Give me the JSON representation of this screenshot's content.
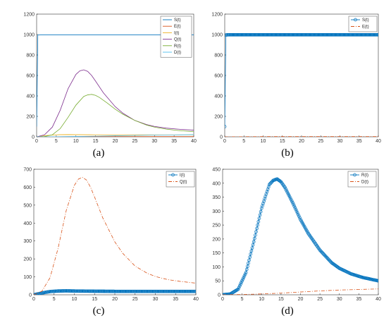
{
  "chart_data": [
    {
      "type": "line",
      "caption": "(a)",
      "xlim": [
        0,
        40
      ],
      "ylim": [
        0,
        1200
      ],
      "xticks": [
        0,
        5,
        10,
        15,
        20,
        25,
        30,
        35,
        40
      ],
      "yticks": [
        0,
        200,
        400,
        600,
        800,
        1000,
        1200
      ],
      "legend_position": "top-right",
      "series": [
        {
          "name": "S(t)",
          "color": "#0072BD",
          "style": "solid",
          "marker": "none",
          "x": [
            0,
            0.3,
            1,
            2,
            5,
            10,
            20,
            30,
            40
          ],
          "y": [
            100,
            996,
            998,
            998,
            998,
            998,
            998,
            998,
            998
          ]
        },
        {
          "name": "E(t)",
          "color": "#D95319",
          "style": "solid",
          "marker": "none",
          "x": [
            0,
            5,
            10,
            20,
            30,
            40
          ],
          "y": [
            0,
            1,
            2,
            2,
            2,
            2
          ]
        },
        {
          "name": "I(t)",
          "color": "#EDB120",
          "style": "solid",
          "marker": "none",
          "x": [
            0,
            2,
            4,
            6,
            8,
            10,
            15,
            20,
            30,
            40
          ],
          "y": [
            0,
            10,
            18,
            21,
            22,
            21,
            20,
            19,
            19,
            19
          ]
        },
        {
          "name": "Q(t)",
          "color": "#7E2F8E",
          "style": "solid",
          "marker": "none",
          "x": [
            0,
            2,
            4,
            6,
            8,
            10,
            11,
            12,
            13,
            14,
            15,
            17,
            20,
            22,
            25,
            28,
            30,
            33,
            36,
            40
          ],
          "y": [
            0,
            20,
            95,
            260,
            470,
            610,
            645,
            655,
            640,
            600,
            545,
            430,
            295,
            230,
            160,
            120,
            102,
            85,
            75,
            65
          ]
        },
        {
          "name": "R(t)",
          "color": "#77AC30",
          "style": "solid",
          "marker": "none",
          "x": [
            0,
            2,
            4,
            6,
            8,
            10,
            12,
            13,
            14,
            15,
            16,
            18,
            20,
            22,
            25,
            28,
            30,
            33,
            36,
            40
          ],
          "y": [
            0,
            3,
            20,
            80,
            190,
            310,
            395,
            410,
            415,
            405,
            385,
            330,
            270,
            220,
            160,
            115,
            95,
            75,
            62,
            50
          ]
        },
        {
          "name": "D(t)",
          "color": "#4DBEEE",
          "style": "solid",
          "marker": "none",
          "x": [
            0,
            5,
            10,
            15,
            20,
            25,
            30,
            35,
            40
          ],
          "y": [
            0,
            1,
            3,
            6,
            10,
            14,
            17,
            19,
            21
          ]
        }
      ]
    },
    {
      "type": "line",
      "caption": "(b)",
      "xlim": [
        0,
        40
      ],
      "ylim": [
        0,
        1200
      ],
      "xticks": [
        0,
        5,
        10,
        15,
        20,
        25,
        30,
        35,
        40
      ],
      "yticks": [
        0,
        200,
        400,
        600,
        800,
        1000,
        1200
      ],
      "legend_position": "top-right",
      "series": [
        {
          "name": "S(t)",
          "color": "#0072BD",
          "style": "solid",
          "marker": "circle",
          "x": [
            0,
            0.3,
            1,
            2,
            5,
            10,
            20,
            30,
            40
          ],
          "y": [
            100,
            996,
            998,
            998,
            998,
            998,
            998,
            998,
            998
          ]
        },
        {
          "name": "E(t)",
          "color": "#D95319",
          "style": "dashdot",
          "marker": "none",
          "x": [
            0,
            5,
            10,
            20,
            30,
            40
          ],
          "y": [
            0,
            1,
            2,
            2,
            2,
            2
          ]
        }
      ]
    },
    {
      "type": "line",
      "caption": "(c)",
      "xlim": [
        0,
        40
      ],
      "ylim": [
        0,
        700
      ],
      "xticks": [
        0,
        5,
        10,
        15,
        20,
        25,
        30,
        35,
        40
      ],
      "yticks": [
        0,
        100,
        200,
        300,
        400,
        500,
        600,
        700
      ],
      "legend_position": "top-right",
      "series": [
        {
          "name": "I(t)",
          "color": "#0072BD",
          "style": "solid",
          "marker": "circle",
          "x": [
            0,
            2,
            4,
            6,
            8,
            10,
            15,
            20,
            30,
            40
          ],
          "y": [
            0,
            10,
            18,
            21,
            22,
            21,
            20,
            19,
            19,
            19
          ]
        },
        {
          "name": "Q(t)",
          "color": "#D95319",
          "style": "dashdot",
          "marker": "none",
          "x": [
            0,
            2,
            4,
            6,
            8,
            10,
            11,
            12,
            13,
            14,
            15,
            17,
            20,
            22,
            25,
            28,
            30,
            33,
            36,
            40
          ],
          "y": [
            0,
            20,
            95,
            260,
            470,
            610,
            645,
            655,
            640,
            600,
            545,
            430,
            295,
            230,
            160,
            120,
            102,
            85,
            75,
            65
          ]
        }
      ]
    },
    {
      "type": "line",
      "caption": "(d)",
      "xlim": [
        0,
        40
      ],
      "ylim": [
        0,
        450
      ],
      "xticks": [
        0,
        5,
        10,
        15,
        20,
        25,
        30,
        35,
        40
      ],
      "yticks": [
        0,
        50,
        100,
        150,
        200,
        250,
        300,
        350,
        400,
        450
      ],
      "legend_position": "top-right",
      "series": [
        {
          "name": "R(t)",
          "color": "#0072BD",
          "style": "solid",
          "marker": "circle",
          "x": [
            0,
            2,
            4,
            6,
            8,
            10,
            12,
            13,
            14,
            15,
            16,
            18,
            20,
            22,
            25,
            28,
            30,
            33,
            36,
            40
          ],
          "y": [
            0,
            3,
            20,
            80,
            190,
            310,
            395,
            410,
            415,
            405,
            385,
            330,
            270,
            220,
            160,
            115,
            95,
            75,
            62,
            50
          ]
        },
        {
          "name": "D(t)",
          "color": "#D95319",
          "style": "dashdot",
          "marker": "none",
          "x": [
            0,
            5,
            10,
            15,
            20,
            25,
            30,
            35,
            40
          ],
          "y": [
            0,
            1,
            3,
            6,
            10,
            14,
            17,
            19,
            21
          ]
        }
      ]
    }
  ]
}
